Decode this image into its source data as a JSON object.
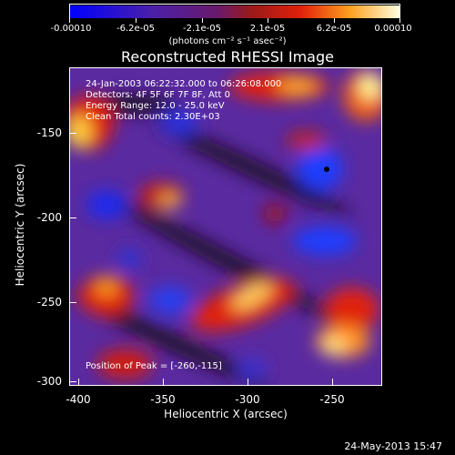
{
  "colorbar": {
    "ticks": [
      "-0.00010",
      "-6.2e-05",
      "-2.1e-05",
      "2.1e-05",
      "6.2e-05",
      "0.00010"
    ],
    "units": "(photons cm⁻² s⁻¹ asec⁻²)"
  },
  "title": "Reconstructed RHESSI Image",
  "annotations": {
    "time": "24-Jan-2003 06:22:32.000 to 06:26:08.000",
    "detectors": "Detectors: 4F 5F 6F 7F 8F, Att 0",
    "energy": "Energy Range: 12.0 - 25.0 keV",
    "clean": "Clean    Total counts: 2.30E+03",
    "peak": "Position of Peak = [-260,-115]"
  },
  "axes": {
    "xlabel": "Heliocentric X (arcsec)",
    "ylabel": "Heliocentric Y (arcsec)",
    "xticks": [
      "-400",
      "-350",
      "-300",
      "-250"
    ],
    "yticks": [
      "-150",
      "-200",
      "-250",
      "-300"
    ]
  },
  "datestamp": "24-May-2013 15:47"
}
